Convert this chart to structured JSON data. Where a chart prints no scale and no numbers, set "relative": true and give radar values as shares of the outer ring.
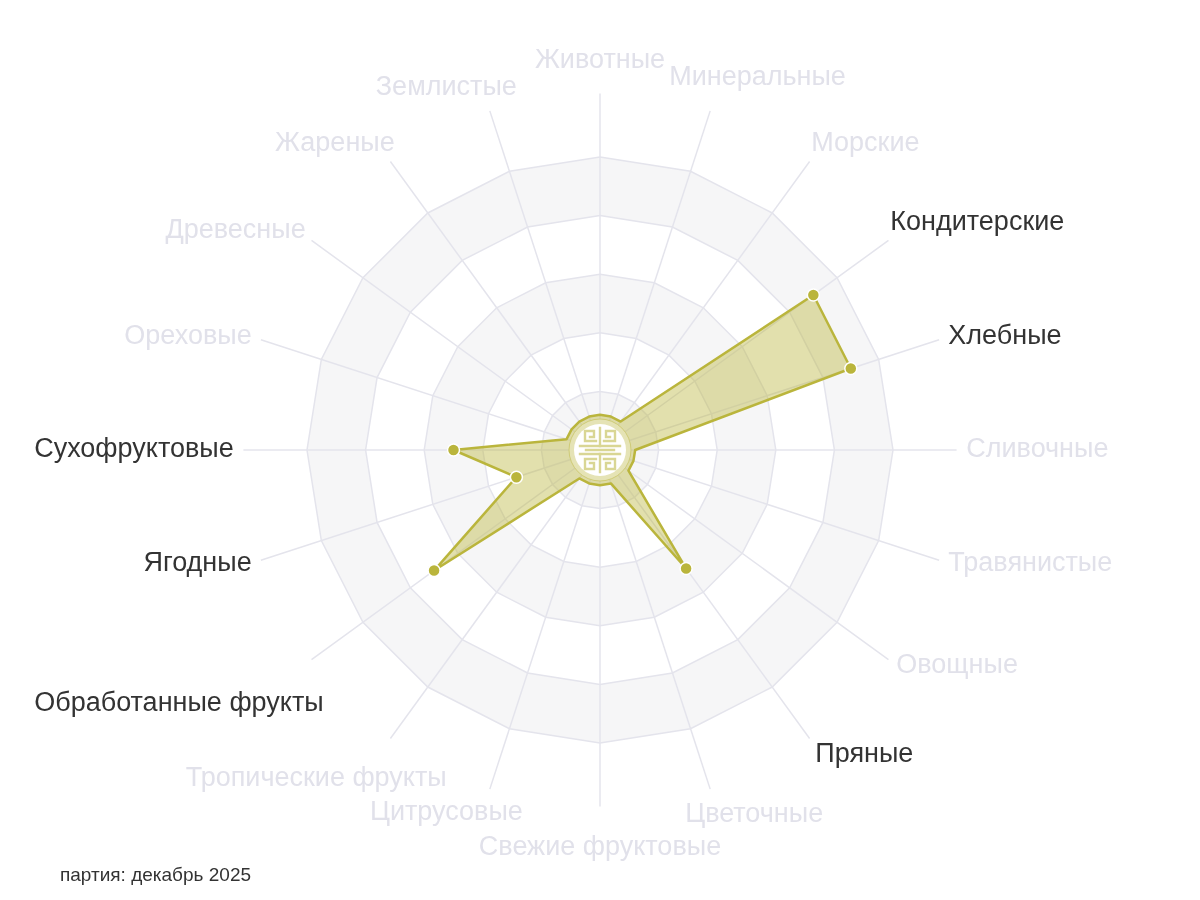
{
  "chart_data": {
    "type": "radar",
    "relative": true,
    "grid": true,
    "marker": "circle",
    "categories": [
      "Животные",
      "Минеральные",
      "Морские",
      "Кондитерские",
      "Хлебные",
      "Сливочные",
      "Травянистые",
      "Овощные",
      "Пряные",
      "Цветочные",
      "Свежие фруктовые",
      "Цитрусовые",
      "Тропические фрукты",
      "Обработанные фрукты",
      "Ягодные",
      "Сухофруктовые",
      "Ореховые",
      "Древесные",
      "Жареные",
      "Землистые"
    ],
    "series": [
      {
        "color": "#bab53c",
        "values": [
          0.12,
          0.12,
          0.12,
          0.9,
          0.9,
          0.12,
          0.12,
          0.12,
          0.5,
          0.12,
          0.12,
          0.12,
          0.12,
          0.7,
          0.3,
          0.5,
          0.12,
          0.12,
          0.12,
          0.12
        ]
      }
    ],
    "annotations": [
      "партия: декабрь 2025"
    ]
  }
}
